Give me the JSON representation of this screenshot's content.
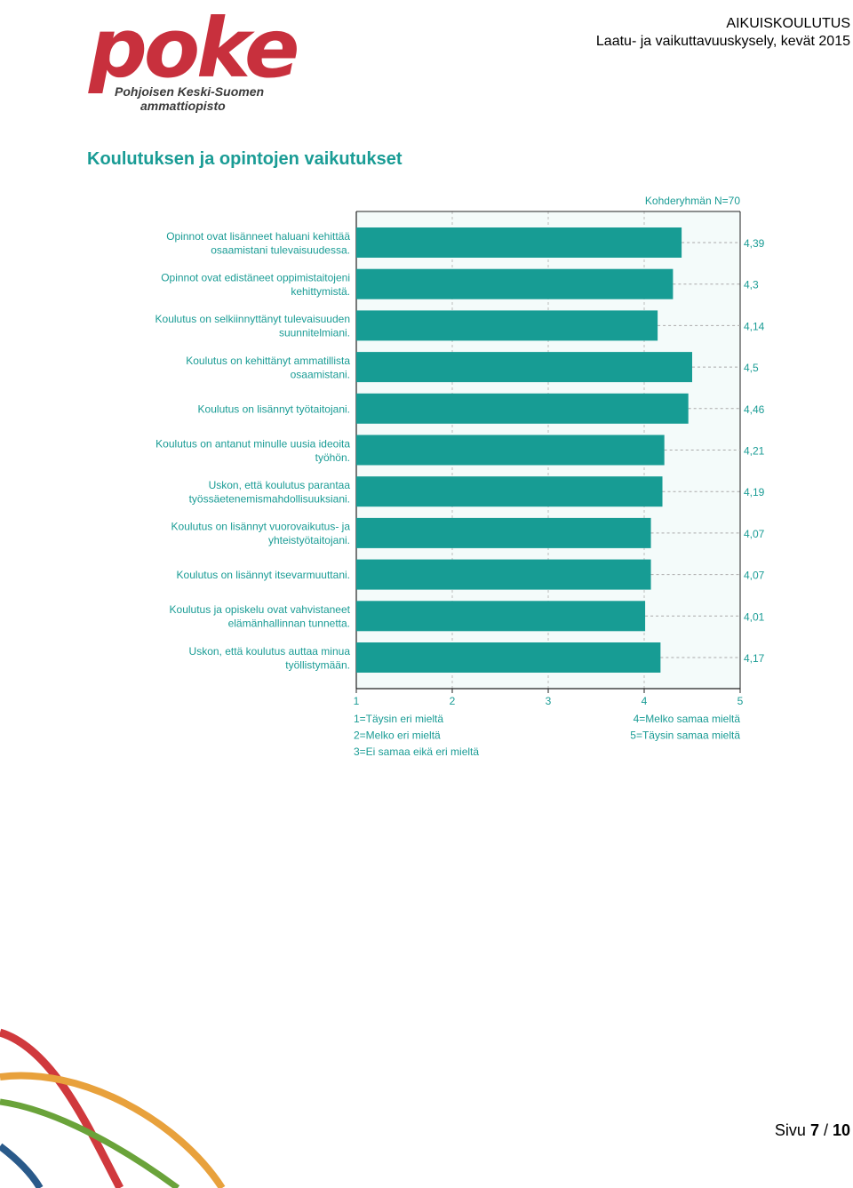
{
  "logo": {
    "word": "poke",
    "line1": "Pohjoisen Keski-Suomen",
    "line2": "ammattiopisto"
  },
  "header": {
    "title": "AIKUISKOULUTUS",
    "subtitle": "Laatu- ja vaikuttavuuskysely, kevät 2015"
  },
  "page_heading": "Koulutuksen ja opintojen vaikutukset",
  "chart_data": {
    "type": "bar",
    "orientation": "horizontal",
    "group_label": "Kohderyhmän N=70",
    "categories": [
      [
        "Opinnot ovat lisänneet haluani kehittää",
        "osaamistani tulevaisuudessa."
      ],
      [
        "Opinnot ovat edistäneet oppimistaitojeni",
        "kehittymistä."
      ],
      [
        "Koulutus on selkiinnyttänyt tulevaisuuden",
        "suunnitelmiani."
      ],
      [
        "Koulutus on kehittänyt ammatillista",
        "osaamistani."
      ],
      [
        "Koulutus on lisännyt työtaitojani."
      ],
      [
        "Koulutus on antanut minulle uusia ideoita",
        "työhön."
      ],
      [
        "Uskon, että koulutus parantaa",
        "työssäetenemismahdollisuuksiani."
      ],
      [
        "Koulutus on lisännyt vuorovaikutus- ja",
        "yhteistyötaitojani."
      ],
      [
        "Koulutus on lisännyt itsevarmuuttani."
      ],
      [
        "Koulutus ja opiskelu ovat vahvistaneet",
        "elämänhallinnan tunnetta."
      ],
      [
        "Uskon, että koulutus auttaa minua",
        "työllistymään."
      ]
    ],
    "values": [
      4.39,
      4.3,
      4.14,
      4.5,
      4.46,
      4.21,
      4.19,
      4.07,
      4.07,
      4.01,
      4.17
    ],
    "value_labels": [
      "4,39",
      "4,3",
      "4,14",
      "4,5",
      "4,46",
      "4,21",
      "4,19",
      "4,07",
      "4,07",
      "4,01",
      "4,17"
    ],
    "xlim": [
      1,
      5
    ],
    "x_ticks": [
      "1",
      "2",
      "3",
      "4",
      "5"
    ],
    "scale_legend_left": [
      "1=Täysin eri mieltä",
      "2=Melko eri mieltä",
      "3=Ei samaa eikä eri mieltä"
    ],
    "scale_legend_right": [
      "4=Melko samaa mieltä",
      "5=Täysin samaa mieltä"
    ],
    "bar_color": "#179c94",
    "text_color": "#1a9c95",
    "plot_background": "#f4fbfa",
    "grid": true
  },
  "footer": {
    "prefix": "Sivu ",
    "current": "7",
    "separator": " / ",
    "total": "10"
  },
  "colors": {
    "brand_red": "#c8303d",
    "brand_teal": "#1a9c95",
    "ribbon_red": "#d0393d",
    "ribbon_orange": "#e8a13c",
    "ribbon_green": "#6aa33a",
    "ribbon_blue": "#2a5a8a"
  }
}
